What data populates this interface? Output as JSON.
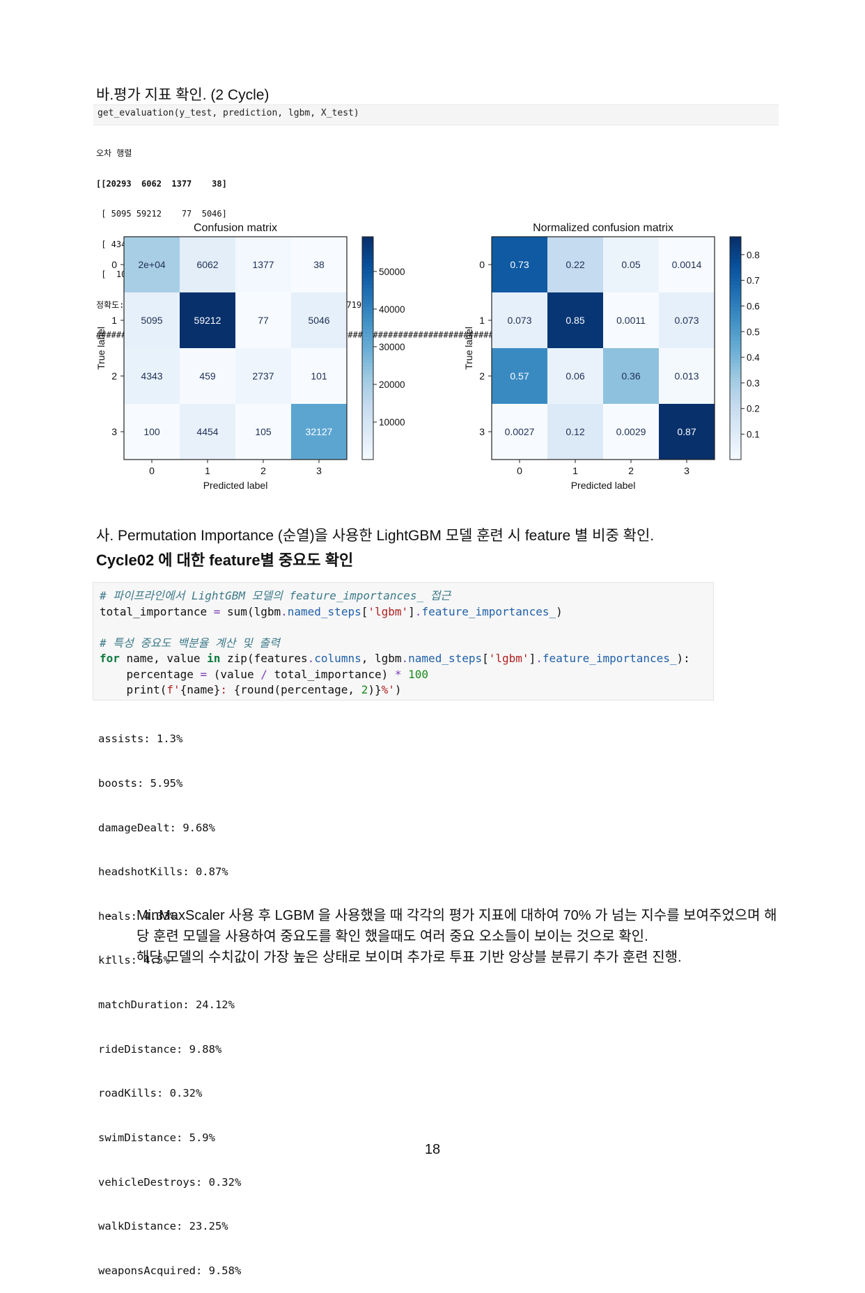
{
  "section_ba": {
    "title": "바.평가 지표 확인. (2 Cycle)"
  },
  "eval_call": {
    "code": "get_evaluation(y_test, prediction, lgbm, X_test)"
  },
  "eval_output": {
    "lines": [
      "오차 행렬",
      "[[20293  6062  1377    38]",
      " [ 5095 59212    77  5046]",
      " [ 4343   459  2737   101]",
      " [  100  4454   105 32127]]",
      "정확도: 0.8075, 정밀도: 0.7555, 재현율: 0.7038, F1: 0.7196",
      "################################################################################"
    ]
  },
  "chart_data": [
    {
      "type": "heatmap",
      "title": "Confusion matrix",
      "xlabel": "Predicted label",
      "ylabel": "True label",
      "x_ticks": [
        "0",
        "1",
        "2",
        "3"
      ],
      "y_ticks": [
        "0",
        "1",
        "2",
        "3"
      ],
      "values": [
        [
          20293,
          6062,
          1377,
          38
        ],
        [
          5095,
          59212,
          77,
          5046
        ],
        [
          4343,
          459,
          2737,
          101
        ],
        [
          100,
          4454,
          105,
          32127
        ]
      ],
      "cell_labels": [
        [
          "2e+04",
          "6062",
          "1377",
          "38"
        ],
        [
          "5095",
          "59212",
          "77",
          "5046"
        ],
        [
          "4343",
          "459",
          "2737",
          "101"
        ],
        [
          "100",
          "4454",
          "105",
          "32127"
        ]
      ],
      "colormap": "Blues",
      "vmin": 38,
      "vmax": 59212,
      "colorbar_ticks": [
        "50000",
        "40000",
        "30000",
        "20000",
        "10000"
      ],
      "colorbar_tick_values": [
        50000,
        40000,
        30000,
        20000,
        10000
      ]
    },
    {
      "type": "heatmap",
      "title": "Normalized confusion matrix",
      "xlabel": "Predicted label",
      "ylabel": "True label",
      "x_ticks": [
        "0",
        "1",
        "2",
        "3"
      ],
      "y_ticks": [
        "0",
        "1",
        "2",
        "3"
      ],
      "values": [
        [
          0.73,
          0.22,
          0.05,
          0.0014
        ],
        [
          0.073,
          0.85,
          0.0011,
          0.073
        ],
        [
          0.57,
          0.06,
          0.36,
          0.013
        ],
        [
          0.0027,
          0.12,
          0.0029,
          0.87
        ]
      ],
      "cell_labels": [
        [
          "0.73",
          "0.22",
          "0.05",
          "0.0014"
        ],
        [
          "0.073",
          "0.85",
          "0.0011",
          "0.073"
        ],
        [
          "0.57",
          "0.06",
          "0.36",
          "0.013"
        ],
        [
          "0.0027",
          "0.12",
          "0.0029",
          "0.87"
        ]
      ],
      "colormap": "Blues",
      "vmin": 0.0011,
      "vmax": 0.87,
      "colorbar_ticks": [
        "0.8",
        "0.7",
        "0.6",
        "0.5",
        "0.4",
        "0.3",
        "0.2",
        "0.1"
      ],
      "colorbar_tick_values": [
        0.8,
        0.7,
        0.6,
        0.5,
        0.4,
        0.3,
        0.2,
        0.1
      ]
    }
  ],
  "section_sa": {
    "title": "사. Permutation Importance (순열)을 사용한 LightGBM 모델 훈련 시  feature 별 비중 확인."
  },
  "subheading": "Cycle02 에 대한 feature별 중요도 확인",
  "code_block": {
    "comment1": "# 파이프라인에서 LightGBM 모델의 feature_importances_ 접근",
    "comment2": "# 특성 중요도 백분율 계산 및 출력"
  },
  "importance_output": [
    "assists: 1.3%",
    "boosts: 5.95%",
    "damageDealt: 9.68%",
    "headshotKills: 0.87%",
    "heals: 4.33%",
    "kills: 4.5%",
    "matchDuration: 24.12%",
    "rideDistance: 9.88%",
    "roadKills: 0.32%",
    "swimDistance: 5.9%",
    "vehicleDestroys: 0.32%",
    "walkDistance: 23.25%",
    "weaponsAcquired: 9.58%"
  ],
  "bullets": [
    {
      "dash": "-",
      "text": "MinMaxScaler 사용 후 LGBM 을 사용했을 때 각각의 평가 지표에 대하여 70% 가 넘는 지수를 보여주었으며 해당 훈련 모델을 사용하여 중요도를 확인 했을때도 여러 중요 오소들이 보이는 것으로 확인."
    },
    {
      "dash": "-",
      "text": "해당 모델의 수치값이 가장 높은 상태로 보이며 추가로 투표 기반 앙상블 분류기 추가 훈련 진행."
    }
  ],
  "page_number": "18"
}
